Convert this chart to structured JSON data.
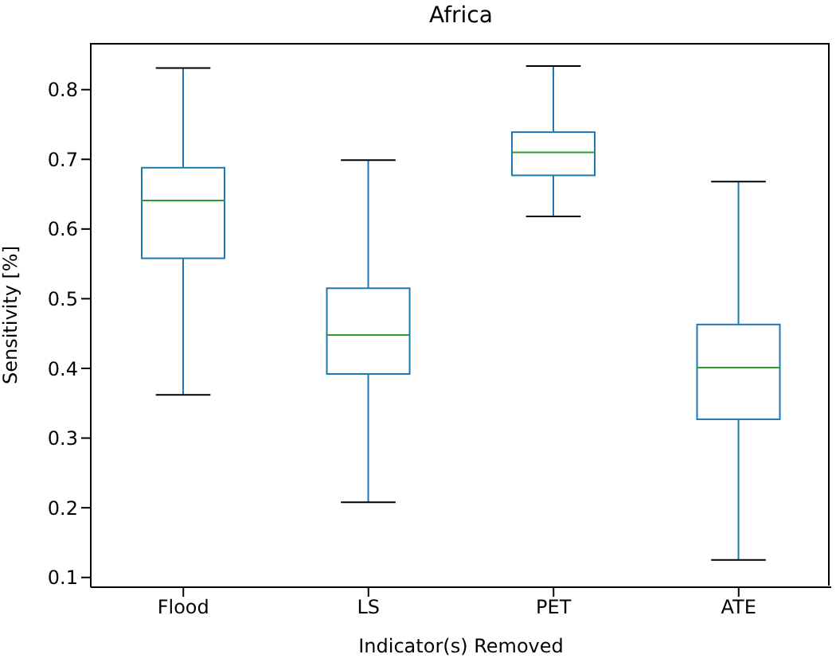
{
  "chart_data": {
    "type": "box",
    "title": "Africa",
    "xlabel": "Indicator(s) Removed",
    "ylabel": "Sensitivity [%]",
    "categories": [
      "Flood",
      "LS",
      "PET",
      "ATE"
    ],
    "boxes": [
      {
        "low": 0.362,
        "q1": 0.558,
        "median": 0.641,
        "q3": 0.688,
        "high": 0.831
      },
      {
        "low": 0.208,
        "q1": 0.392,
        "median": 0.448,
        "q3": 0.515,
        "high": 0.699
      },
      {
        "low": 0.618,
        "q1": 0.677,
        "median": 0.71,
        "q3": 0.739,
        "high": 0.834
      },
      {
        "low": 0.125,
        "q1": 0.327,
        "median": 0.401,
        "q3": 0.463,
        "high": 0.668
      }
    ],
    "color": "#1f77b4",
    "ylim": [
      0.086,
      0.867
    ],
    "yticks": [
      0.1,
      0.2,
      0.3,
      0.4,
      0.5,
      0.6,
      0.7,
      0.8
    ],
    "grid": false,
    "legend": false
  }
}
